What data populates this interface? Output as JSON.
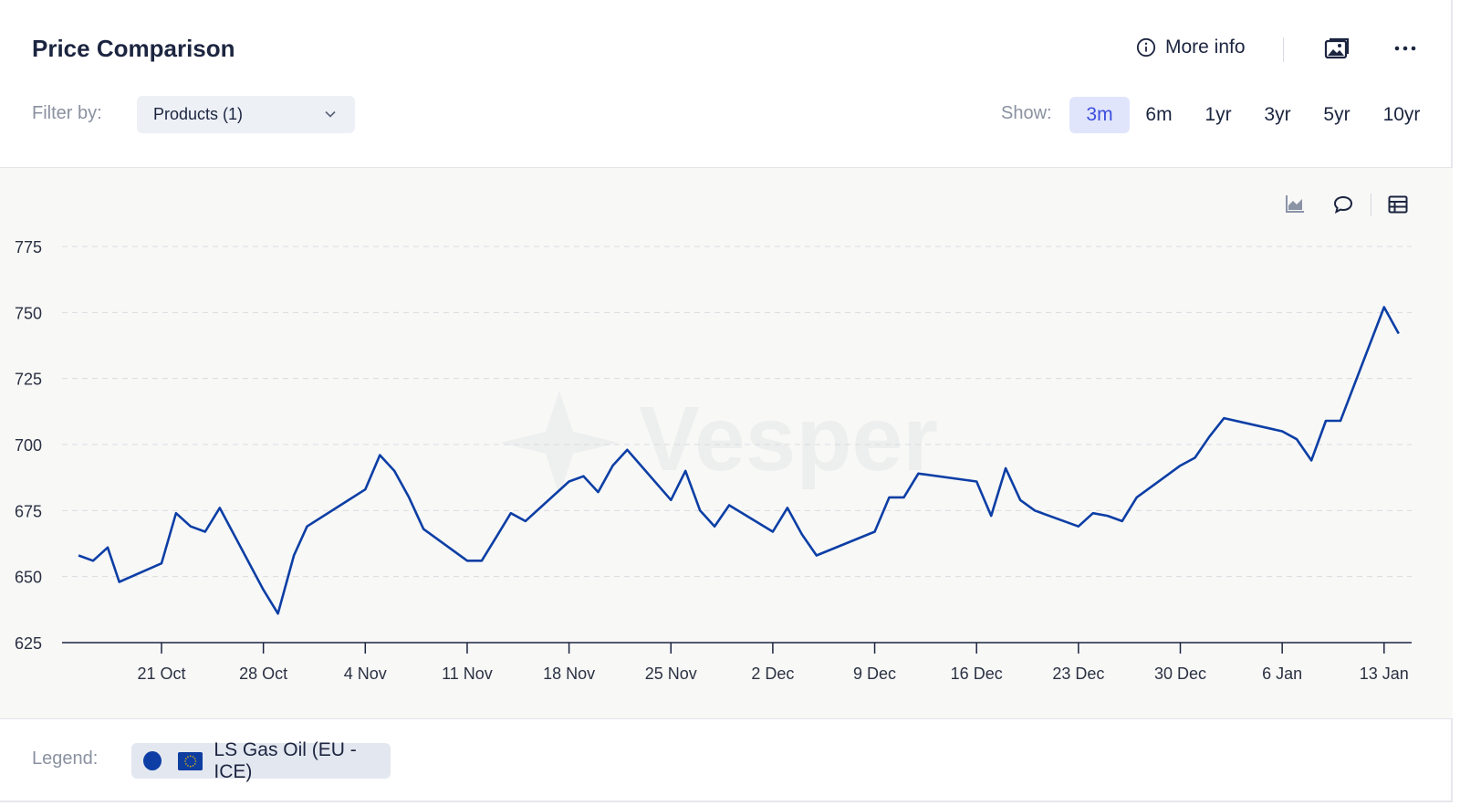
{
  "title": "Price Comparison",
  "header": {
    "more_info_label": "More info"
  },
  "filter": {
    "label": "Filter by:",
    "value": "Products (1)"
  },
  "range": {
    "label": "Show:",
    "options": [
      "3m",
      "6m",
      "1yr",
      "3yr",
      "5yr",
      "10yr"
    ],
    "selected": "3m"
  },
  "watermark": "Vesper",
  "legend": {
    "label": "Legend:",
    "items": [
      {
        "name": "LS Gas Oil (EU - ICE)",
        "color": "#0c3ea5",
        "flag": "eu-flag-icon"
      }
    ]
  },
  "colors": {
    "line": "#0c3ea5",
    "accent": "#3b4ee0",
    "accent_bg": "#e1e5fb"
  },
  "chart_data": {
    "type": "line",
    "ylim": [
      625,
      775
    ],
    "yticks": [
      625,
      650,
      675,
      700,
      725,
      750,
      775
    ],
    "xtick_labels": [
      "21 Oct",
      "28 Oct",
      "4 Nov",
      "11 Nov",
      "18 Nov",
      "25 Nov",
      "2 Dec",
      "9 Dec",
      "16 Dec",
      "23 Dec",
      "30 Dec",
      "6 Jan",
      "13 Jan"
    ],
    "xticks_day": [
      6,
      13,
      20,
      27,
      34,
      41,
      48,
      55,
      62,
      69,
      76,
      83,
      90
    ],
    "grid": true,
    "legend_position": "bottom",
    "series": [
      {
        "name": "LS Gas Oil (EU - ICE)",
        "x": [
          0.3,
          1.3,
          2.3,
          3.1,
          6.0,
          7.0,
          8.0,
          9.0,
          10.0,
          13.0,
          14.0,
          15.1,
          16.0,
          20.0,
          21.0,
          22.0,
          23.0,
          24.0,
          27.0,
          28.0,
          29.0,
          30.0,
          31.0,
          34.0,
          35.0,
          36.0,
          37.0,
          38.0,
          41.0,
          42.0,
          43.0,
          44.0,
          45.0,
          48.0,
          49.0,
          50.0,
          51.0,
          55.0,
          56.0,
          57.0,
          58.0,
          62.0,
          63.0,
          64.0,
          65.0,
          66.0,
          69.0,
          70.0,
          71.0,
          72.0,
          73.0,
          76.0,
          77.0,
          78.0,
          79.0,
          83.0,
          84.0,
          85.0,
          86.0,
          87.0,
          90.0,
          91.0
        ],
        "y": [
          658,
          656,
          661,
          648,
          655,
          674,
          669,
          667,
          676,
          645,
          636,
          658,
          669,
          683,
          696,
          690,
          680,
          668,
          656,
          656,
          665,
          674,
          671,
          686,
          688,
          682,
          692,
          698,
          679,
          690,
          675,
          669,
          677,
          667,
          676,
          666,
          658,
          667,
          680,
          680,
          689,
          686,
          673,
          691,
          679,
          675,
          669,
          674,
          673,
          671,
          680,
          692,
          695,
          703,
          710,
          705,
          702,
          694,
          709,
          709,
          752,
          742
        ]
      }
    ]
  }
}
